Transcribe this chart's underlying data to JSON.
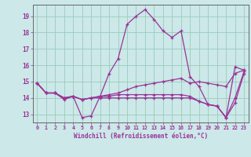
{
  "xlabel": "Windchill (Refroidissement éolien,°C)",
  "bg_color": "#cce8e8",
  "grid_color": "#99ccbb",
  "line_color": "#993399",
  "spine_color": "#666666",
  "xlim": [
    -0.5,
    23.5
  ],
  "ylim": [
    12.5,
    19.7
  ],
  "yticks": [
    13,
    14,
    15,
    16,
    17,
    18,
    19
  ],
  "xticks": [
    0,
    1,
    2,
    3,
    4,
    5,
    6,
    7,
    8,
    9,
    10,
    11,
    12,
    13,
    14,
    15,
    16,
    17,
    18,
    19,
    20,
    21,
    22,
    23
  ],
  "series": [
    [
      14.9,
      14.3,
      14.3,
      13.9,
      14.1,
      12.8,
      12.9,
      14.1,
      15.5,
      16.4,
      18.5,
      19.0,
      19.4,
      18.8,
      18.1,
      17.7,
      18.1,
      15.3,
      14.7,
      13.6,
      13.5,
      12.8,
      15.9,
      15.7
    ],
    [
      14.9,
      14.3,
      14.3,
      14.0,
      14.1,
      13.9,
      14.0,
      14.1,
      14.2,
      14.3,
      14.5,
      14.7,
      14.8,
      14.9,
      15.0,
      15.1,
      15.2,
      14.9,
      15.0,
      14.9,
      14.8,
      14.7,
      15.5,
      15.7
    ],
    [
      14.9,
      14.3,
      14.3,
      14.0,
      14.1,
      13.9,
      14.0,
      14.1,
      14.1,
      14.2,
      14.2,
      14.2,
      14.2,
      14.2,
      14.2,
      14.2,
      14.2,
      14.1,
      13.8,
      13.6,
      13.5,
      12.8,
      14.0,
      15.6
    ],
    [
      14.9,
      14.3,
      14.3,
      14.0,
      14.1,
      13.9,
      14.0,
      14.0,
      14.0,
      14.0,
      14.0,
      14.0,
      14.0,
      14.0,
      14.0,
      14.0,
      14.0,
      14.0,
      13.8,
      13.6,
      13.5,
      12.8,
      13.7,
      15.5
    ]
  ]
}
